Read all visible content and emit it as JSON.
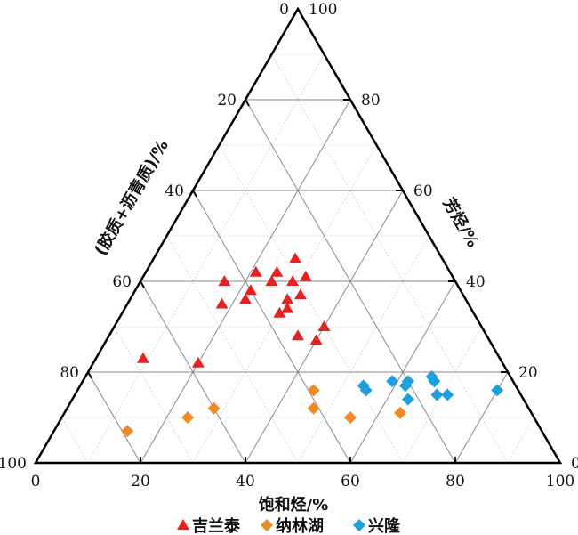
{
  "chart_data": {
    "type": "scatter",
    "subtype": "ternary",
    "axes": {
      "bottom": {
        "label": "饱和烃/%",
        "ticks": [
          "0",
          "20",
          "40",
          "60",
          "80",
          "100"
        ]
      },
      "right": {
        "label": "芳烃/%",
        "ticks": [
          "0",
          "20",
          "40",
          "60",
          "80",
          "100"
        ]
      },
      "left": {
        "label": "(胶质+沥青质)/%",
        "ticks": [
          "0",
          "20",
          "40",
          "60",
          "80",
          "100"
        ]
      }
    },
    "grid": true,
    "minor_grid": true,
    "legend_position": "bottom",
    "series": [
      {
        "name": "吉兰泰",
        "marker": "triangle",
        "color": "#e32222",
        "points": [
          {
            "sat": 20,
            "aro": 22,
            "res": 58
          },
          {
            "sat": 22,
            "aro": 36,
            "res": 42
          },
          {
            "sat": 30,
            "aro": 33,
            "res": 37
          },
          {
            "sat": 32,
            "aro": 37,
            "res": 31
          },
          {
            "sat": 31,
            "aro": 34,
            "res": 35
          },
          {
            "sat": 29,
            "aro": 40,
            "res": 31
          },
          {
            "sat": 31,
            "aro": 41,
            "res": 28
          },
          {
            "sat": 27,
            "aro": 45,
            "res": 28
          },
          {
            "sat": 25,
            "aro": 42,
            "res": 33
          },
          {
            "sat": 16,
            "aro": 40,
            "res": 44
          },
          {
            "sat": 21,
            "aro": 42,
            "res": 37
          },
          {
            "sat": 25,
            "aro": 40,
            "res": 35
          },
          {
            "sat": 18,
            "aro": 35,
            "res": 47
          },
          {
            "sat": 9,
            "aro": 23,
            "res": 68
          },
          {
            "sat": 22,
            "aro": 38,
            "res": 40
          },
          {
            "sat": 30,
            "aro": 36,
            "res": 34
          },
          {
            "sat": 36,
            "aro": 28,
            "res": 36
          },
          {
            "sat": 40,
            "aro": 30,
            "res": 30
          },
          {
            "sat": 40,
            "aro": 27,
            "res": 33
          }
        ]
      },
      {
        "name": "纳林湖",
        "marker": "diamond",
        "color": "#f08a24",
        "points": [
          {
            "sat": 14,
            "aro": 7,
            "res": 79
          },
          {
            "sat": 24,
            "aro": 10,
            "res": 66
          },
          {
            "sat": 28,
            "aro": 12,
            "res": 60
          },
          {
            "sat": 47,
            "aro": 12,
            "res": 41
          },
          {
            "sat": 45,
            "aro": 16,
            "res": 39
          },
          {
            "sat": 55,
            "aro": 10,
            "res": 35
          },
          {
            "sat": 64,
            "aro": 11,
            "res": 25
          }
        ]
      },
      {
        "name": "兴隆",
        "marker": "diamond",
        "color": "#1ea0dc",
        "points": [
          {
            "sat": 54,
            "aro": 17,
            "res": 29
          },
          {
            "sat": 55,
            "aro": 16,
            "res": 29
          },
          {
            "sat": 59,
            "aro": 18,
            "res": 23
          },
          {
            "sat": 62,
            "aro": 17,
            "res": 21
          },
          {
            "sat": 62,
            "aro": 18,
            "res": 20
          },
          {
            "sat": 66,
            "aro": 19,
            "res": 15
          },
          {
            "sat": 67,
            "aro": 18,
            "res": 15
          },
          {
            "sat": 64,
            "aro": 14,
            "res": 22
          },
          {
            "sat": 69,
            "aro": 15,
            "res": 16
          },
          {
            "sat": 71,
            "aro": 15,
            "res": 14
          },
          {
            "sat": 80,
            "aro": 16,
            "res": 4
          }
        ]
      }
    ]
  }
}
